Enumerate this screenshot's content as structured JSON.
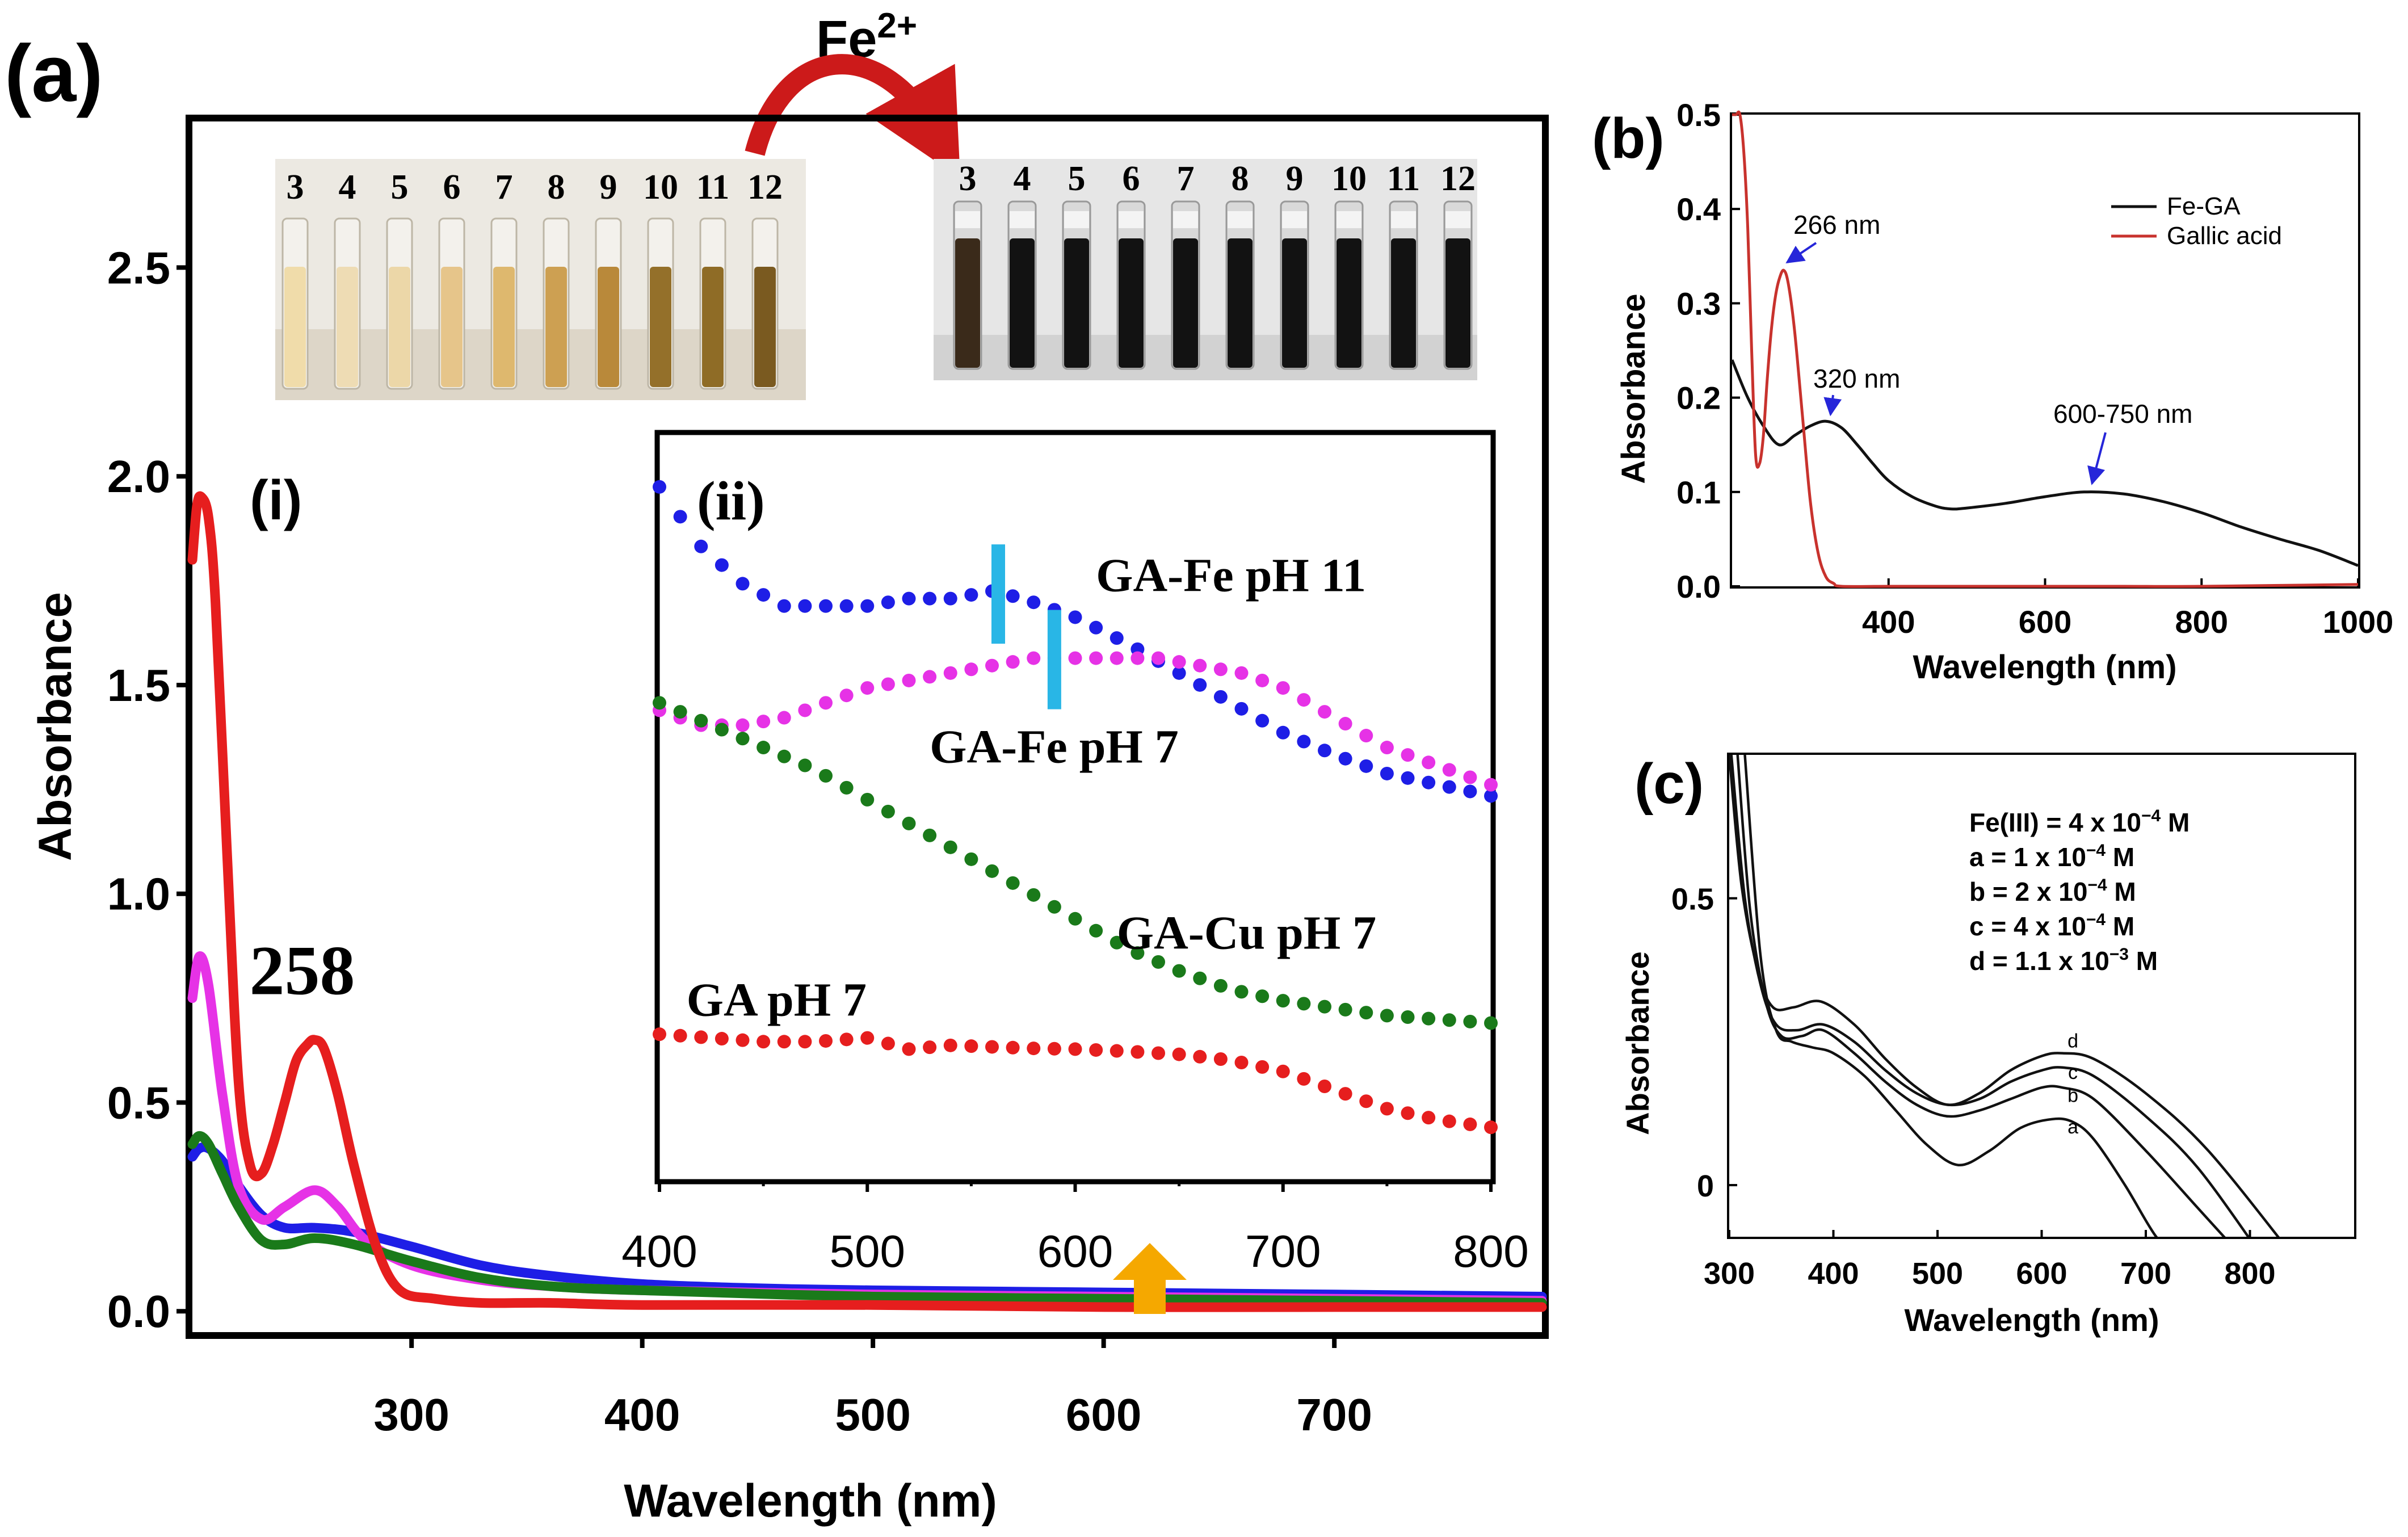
{
  "figure": {
    "panel_a_label": "(a)",
    "panel_b_label": "(b)",
    "panel_c_label": "(c)",
    "reagent": {
      "symbol": "Fe",
      "charge": "2+"
    },
    "vials_before": [
      "3",
      "4",
      "5",
      "6",
      "7",
      "8",
      "9",
      "10",
      "11",
      "12"
    ],
    "vials_after": [
      "3",
      "4",
      "5",
      "6",
      "7",
      "8",
      "9",
      "10",
      "11",
      "12"
    ],
    "vial_before_colors": [
      "#f0dcaa",
      "#eedcb4",
      "#ecd7a8",
      "#e6c58a",
      "#deb86e",
      "#cda052",
      "#b9893a",
      "#94702a",
      "#8f6c26",
      "#7a5a20"
    ],
    "arrow_color": "#cc1a1a",
    "marker_color": "#f5a800"
  },
  "chart_data": [
    {
      "id": "a",
      "type": "line",
      "title": "",
      "xlabel": "Wavelength (nm)",
      "ylabel": "Absorbance",
      "xlim": [
        205,
        790
      ],
      "ylim": [
        -0.05,
        2.85
      ],
      "xticks": [
        300,
        400,
        500,
        600,
        700
      ],
      "yticks": [
        0.0,
        0.5,
        1.0,
        1.5,
        2.0,
        2.5
      ],
      "ytick_labels": [
        "0.0",
        "0.5",
        "1.0",
        "1.5",
        "2.0",
        "2.5"
      ],
      "sub_label": "(i)",
      "annotations": [
        {
          "text": "258",
          "x": 258,
          "y": 0.78
        }
      ],
      "marker_arrow_x": 620,
      "series": [
        {
          "name": "GA-Fe pH 11",
          "color": "#1e1ee6",
          "x": [
            205,
            208,
            212,
            218,
            225,
            235,
            245,
            258,
            275,
            300,
            330,
            360,
            400,
            450,
            500,
            600,
            700,
            790
          ],
          "y": [
            0.37,
            0.39,
            0.39,
            0.36,
            0.3,
            0.23,
            0.2,
            0.2,
            0.19,
            0.155,
            0.11,
            0.085,
            0.065,
            0.055,
            0.05,
            0.045,
            0.04,
            0.035
          ]
        },
        {
          "name": "GA-Fe pH 7",
          "color": "#e632e6",
          "x": [
            205,
            208,
            212,
            218,
            225,
            235,
            245,
            258,
            268,
            280,
            300,
            330,
            360,
            400,
            500,
            600,
            700,
            790
          ],
          "y": [
            0.75,
            0.85,
            0.78,
            0.52,
            0.3,
            0.22,
            0.25,
            0.29,
            0.25,
            0.17,
            0.11,
            0.075,
            0.06,
            0.05,
            0.04,
            0.035,
            0.03,
            0.025
          ]
        },
        {
          "name": "GA-Cu pH 7",
          "color": "#1a7a1a",
          "x": [
            205,
            208,
            212,
            218,
            225,
            235,
            245,
            258,
            275,
            300,
            330,
            360,
            400,
            500,
            600,
            700,
            790
          ],
          "y": [
            0.4,
            0.42,
            0.4,
            0.33,
            0.25,
            0.17,
            0.16,
            0.175,
            0.16,
            0.12,
            0.08,
            0.06,
            0.05,
            0.035,
            0.03,
            0.025,
            0.02
          ]
        },
        {
          "name": "GA pH 7",
          "color": "#e61e1e",
          "x": [
            205,
            207,
            209,
            212,
            215,
            220,
            225,
            230,
            235,
            240,
            245,
            250,
            255,
            258,
            262,
            268,
            275,
            285,
            295,
            310,
            330,
            360,
            400,
            500,
            600,
            700,
            790
          ],
          "y": [
            1.8,
            1.93,
            1.95,
            1.9,
            1.7,
            1.1,
            0.55,
            0.35,
            0.33,
            0.4,
            0.5,
            0.6,
            0.64,
            0.65,
            0.63,
            0.52,
            0.35,
            0.15,
            0.05,
            0.03,
            0.02,
            0.02,
            0.015,
            0.015,
            0.01,
            0.01,
            0.01
          ]
        }
      ]
    },
    {
      "id": "a-inset",
      "type": "scatter",
      "title": "",
      "sub_label": "(ii)",
      "xlabel": "",
      "ylabel": "",
      "xlim": [
        400,
        800
      ],
      "ylim": [
        0,
        1
      ],
      "xticks": [
        400,
        500,
        600,
        700,
        800
      ],
      "yticks": [],
      "markers": [
        {
          "series": "GA-Fe pH 11",
          "x": 563
        },
        {
          "series": "GA-Fe pH 7",
          "x": 590
        }
      ],
      "marker_color": "#29b6e6",
      "series": [
        {
          "name": "GA-Fe pH 11",
          "color": "#1e1ee6",
          "label_at": [
            610,
            0.79
          ],
          "x": [
            400,
            420,
            440,
            460,
            480,
            500,
            520,
            540,
            560,
            575,
            600,
            625,
            650,
            675,
            700,
            725,
            750,
            775,
            800
          ],
          "y": [
            0.93,
            0.85,
            0.8,
            0.77,
            0.77,
            0.77,
            0.78,
            0.78,
            0.79,
            0.78,
            0.755,
            0.72,
            0.68,
            0.64,
            0.6,
            0.57,
            0.545,
            0.53,
            0.515
          ]
        },
        {
          "name": "GA-Fe pH 7",
          "color": "#e632e6",
          "label_at": [
            530,
            0.56
          ],
          "x": [
            400,
            420,
            440,
            460,
            480,
            500,
            520,
            540,
            560,
            580,
            600,
            620,
            640,
            660,
            680,
            700,
            725,
            750,
            775,
            800
          ],
          "y": [
            0.63,
            0.61,
            0.61,
            0.62,
            0.64,
            0.66,
            0.67,
            0.68,
            0.69,
            0.7,
            0.7,
            0.7,
            0.7,
            0.69,
            0.68,
            0.66,
            0.62,
            0.58,
            0.555,
            0.53
          ]
        },
        {
          "name": "GA-Cu pH 7",
          "color": "#1a7a1a",
          "label_at": [
            620,
            0.31
          ],
          "x": [
            400,
            425,
            450,
            475,
            500,
            525,
            550,
            575,
            600,
            625,
            650,
            675,
            700,
            725,
            750,
            775,
            800
          ],
          "y": [
            0.64,
            0.61,
            0.58,
            0.55,
            0.51,
            0.47,
            0.43,
            0.39,
            0.35,
            0.31,
            0.28,
            0.255,
            0.24,
            0.23,
            0.22,
            0.215,
            0.21
          ]
        },
        {
          "name": "GA pH 7",
          "color": "#e61e1e",
          "label_at": [
            413,
            0.22
          ],
          "x": [
            400,
            425,
            450,
            475,
            500,
            520,
            540,
            560,
            580,
            600,
            625,
            650,
            675,
            700,
            725,
            750,
            775,
            800
          ],
          "y": [
            0.195,
            0.19,
            0.185,
            0.185,
            0.19,
            0.175,
            0.18,
            0.178,
            0.176,
            0.175,
            0.172,
            0.168,
            0.16,
            0.145,
            0.12,
            0.095,
            0.08,
            0.07
          ]
        }
      ]
    },
    {
      "id": "b",
      "type": "line",
      "title": "",
      "xlabel": "Wavelength (nm)",
      "ylabel": "Absorbance",
      "xlim": [
        200,
        1000
      ],
      "ylim": [
        0.0,
        0.5
      ],
      "xticks": [
        400,
        600,
        800,
        1000
      ],
      "yticks": [
        0.0,
        0.1,
        0.2,
        0.3,
        0.4,
        0.5
      ],
      "ytick_labels": [
        "0.0",
        "0.1",
        "0.2",
        "0.3",
        "0.4",
        "0.5"
      ],
      "legend": "top-right",
      "annotations": [
        {
          "text": "266 nm",
          "x": 266,
          "y": 0.335
        },
        {
          "text": "320 nm",
          "x": 320,
          "y": 0.175
        },
        {
          "text": "600-750 nm",
          "x": 660,
          "y": 0.103
        }
      ],
      "series": [
        {
          "name": "Fe-GA",
          "color": "#111111",
          "x": [
            200,
            220,
            240,
            260,
            280,
            300,
            320,
            340,
            360,
            380,
            400,
            430,
            460,
            480,
            500,
            550,
            600,
            650,
            700,
            750,
            800,
            850,
            900,
            950,
            1000
          ],
          "y": [
            0.24,
            0.2,
            0.17,
            0.15,
            0.16,
            0.17,
            0.175,
            0.168,
            0.15,
            0.13,
            0.112,
            0.095,
            0.085,
            0.082,
            0.083,
            0.088,
            0.095,
            0.1,
            0.098,
            0.09,
            0.078,
            0.063,
            0.05,
            0.038,
            0.022
          ]
        },
        {
          "name": "Gallic acid",
          "color": "#c8322d",
          "x": [
            200,
            205,
            210,
            215,
            220,
            225,
            230,
            235,
            240,
            245,
            250,
            255,
            260,
            266,
            272,
            280,
            290,
            300,
            310,
            320,
            330,
            340,
            400,
            500,
            600,
            700,
            800,
            1000
          ],
          "y": [
            0.5,
            0.5,
            0.5,
            0.46,
            0.38,
            0.25,
            0.14,
            0.13,
            0.16,
            0.22,
            0.27,
            0.305,
            0.325,
            0.335,
            0.32,
            0.27,
            0.18,
            0.09,
            0.035,
            0.01,
            0.003,
            0.0,
            0.0,
            0.0,
            0.0,
            0.0,
            0.0,
            0.002
          ]
        }
      ]
    },
    {
      "id": "c",
      "type": "line",
      "title": "",
      "xlabel": "Wavelength (nm)",
      "ylabel": "Absorbance",
      "xlim": [
        300,
        900
      ],
      "ylim": [
        -0.09,
        0.75
      ],
      "xticks": [
        300,
        400,
        500,
        600,
        700,
        800
      ],
      "yticks": [
        0,
        0.5
      ],
      "ytick_labels": [
        "0",
        "0.5"
      ],
      "legend_lines": [
        {
          "base": "Fe(III) = 4 x 10",
          "exp": "-4",
          "unit": "M"
        },
        {
          "base": "a = 1 x 10",
          "exp": "-4",
          "unit": "M"
        },
        {
          "base": "b = 2 x 10",
          "exp": "-4",
          "unit": "M"
        },
        {
          "base": "c = 4 x 10",
          "exp": "-4",
          "unit": "M"
        },
        {
          "base": "d = 1.1 x 10",
          "exp": "-3",
          "unit": "M"
        }
      ],
      "series": [
        {
          "name": "a",
          "color": "#111111",
          "label_at": [
            630,
            0.09
          ],
          "x": [
            315,
            330,
            345,
            360,
            380,
            400,
            430,
            460,
            490,
            520,
            550,
            580,
            610,
            630,
            650,
            680,
            710,
            730
          ],
          "y": [
            0.75,
            0.4,
            0.27,
            0.25,
            0.24,
            0.23,
            0.19,
            0.13,
            0.07,
            0.035,
            0.06,
            0.1,
            0.115,
            0.11,
            0.08,
            0.0,
            -0.09,
            -0.12
          ]
        },
        {
          "name": "b",
          "color": "#111111",
          "label_at": [
            630,
            0.145
          ],
          "x": [
            308,
            320,
            335,
            350,
            370,
            390,
            420,
            450,
            480,
            510,
            540,
            570,
            600,
            620,
            650,
            700,
            750,
            790
          ],
          "y": [
            0.75,
            0.48,
            0.32,
            0.26,
            0.26,
            0.27,
            0.23,
            0.18,
            0.14,
            0.12,
            0.13,
            0.15,
            0.17,
            0.17,
            0.15,
            0.06,
            -0.04,
            -0.12
          ]
        },
        {
          "name": "c",
          "color": "#111111",
          "label_at": [
            630,
            0.185
          ],
          "x": [
            302,
            315,
            330,
            345,
            365,
            390,
            420,
            450,
            480,
            510,
            540,
            570,
            600,
            620,
            650,
            700,
            750,
            810
          ],
          "y": [
            0.75,
            0.5,
            0.35,
            0.28,
            0.27,
            0.28,
            0.25,
            0.2,
            0.16,
            0.14,
            0.15,
            0.18,
            0.2,
            0.205,
            0.19,
            0.12,
            0.03,
            -0.12
          ]
        },
        {
          "name": "d",
          "color": "#111111",
          "label_at": [
            630,
            0.24
          ],
          "x": [
            300,
            312,
            328,
            342,
            362,
            388,
            420,
            450,
            480,
            510,
            540,
            570,
            600,
            620,
            650,
            700,
            760,
            840
          ],
          "y": [
            0.75,
            0.52,
            0.37,
            0.31,
            0.31,
            0.32,
            0.28,
            0.22,
            0.17,
            0.14,
            0.16,
            0.2,
            0.225,
            0.23,
            0.22,
            0.16,
            0.06,
            -0.12
          ]
        }
      ]
    }
  ]
}
